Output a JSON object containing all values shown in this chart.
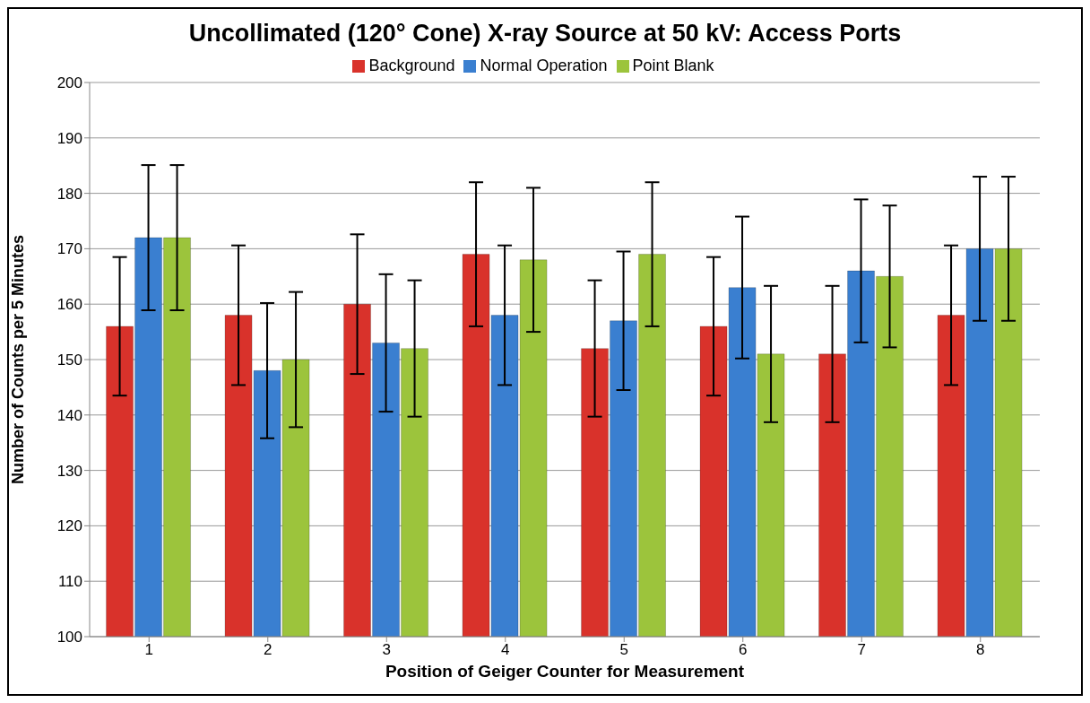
{
  "chart_data": {
    "type": "bar",
    "title": "Uncollimated (120° Cone) X-ray Source at 50 kV: Access Ports",
    "xlabel": "Position of Geiger Counter for Measurement",
    "ylabel": "Number of Counts per 5 Minutes",
    "categories": [
      "1",
      "2",
      "3",
      "4",
      "5",
      "6",
      "7",
      "8"
    ],
    "series": [
      {
        "name": "Background",
        "color": "#d9322b",
        "values": [
          156,
          158,
          160,
          169,
          152,
          156,
          151,
          158
        ],
        "errors": [
          12.5,
          12.6,
          12.6,
          13,
          12.3,
          12.5,
          12.3,
          12.6
        ]
      },
      {
        "name": "Normal Operation",
        "color": "#3a7fd0",
        "values": [
          172,
          148,
          153,
          158,
          157,
          163,
          166,
          170
        ],
        "errors": [
          13.1,
          12.2,
          12.4,
          12.6,
          12.5,
          12.8,
          12.9,
          13
        ]
      },
      {
        "name": "Point Blank",
        "color": "#9cc43c",
        "values": [
          172,
          150,
          152,
          168,
          169,
          151,
          165,
          170
        ],
        "errors": [
          13.1,
          12.2,
          12.3,
          13,
          13,
          12.3,
          12.8,
          13
        ]
      }
    ],
    "ylim": [
      100,
      200
    ],
    "yticks": [
      100,
      110,
      120,
      130,
      140,
      150,
      160,
      170,
      180,
      190,
      200
    ],
    "grid": "y",
    "legend": "top"
  }
}
